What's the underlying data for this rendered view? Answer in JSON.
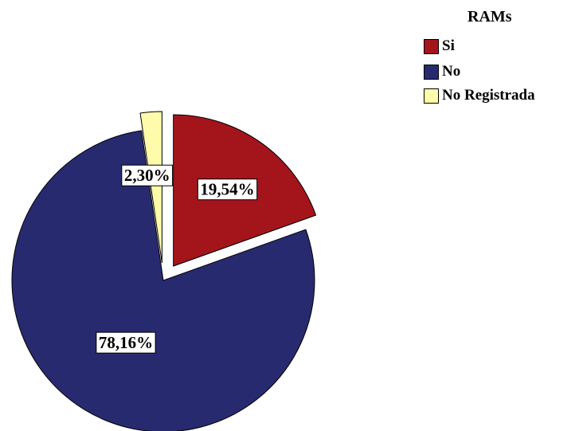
{
  "chart_data": {
    "type": "pie",
    "legend_title": "RAMs",
    "legend_position": "top-right",
    "slices": [
      {
        "label": "Si",
        "value": 19.54,
        "display": "19,54%",
        "color": "#a3151b",
        "exploded": true
      },
      {
        "label": "No",
        "value": 78.16,
        "display": "78,16%",
        "color": "#282a70",
        "exploded": false
      },
      {
        "label": "No Registrada",
        "value": 2.3,
        "display": "2,30%",
        "color": "#fefbaa",
        "exploded": true
      }
    ]
  }
}
